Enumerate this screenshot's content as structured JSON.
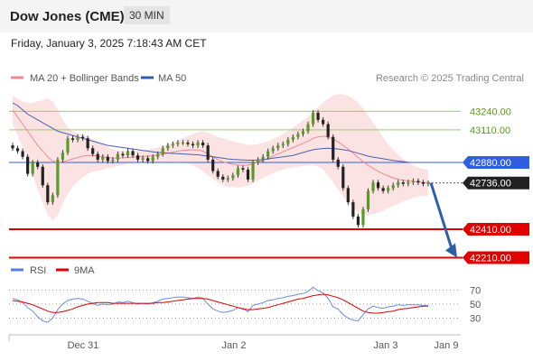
{
  "header": {
    "title": "Dow Jones (CME)",
    "interval": "30 MIN",
    "datetime": "Friday, January 3, 2025 7:18:43 AM CET"
  },
  "legend": {
    "items": [
      {
        "label": "MA 20 + Bollinger Bands",
        "color": "#f08a8a"
      },
      {
        "label": "MA 50",
        "color": "#2e5fa8"
      }
    ],
    "credit": "Research © 2025 Trading Central"
  },
  "lower_legend": {
    "items": [
      {
        "label": "RSI",
        "color": "#5b7fd6"
      },
      {
        "label": "9MA",
        "color": "#e00000"
      }
    ]
  },
  "chart_data": [
    {
      "type": "candlestick",
      "ylim": [
        42150,
        43420
      ],
      "x_ticks": [
        "Dec 31",
        "Jan 2",
        "Jan 3",
        "Jan 9"
      ],
      "levels": [
        {
          "label": "43240.00",
          "value": 43240,
          "kind": "resistance",
          "color": "#9acd60"
        },
        {
          "label": "43110.00",
          "value": 43110,
          "kind": "resistance",
          "color": "#9acd60"
        },
        {
          "label": "42880.00",
          "value": 42880,
          "kind": "pivot",
          "color": "#2f5fe0"
        },
        {
          "label": "42736.00",
          "value": 42736,
          "kind": "last",
          "color": "#222222"
        },
        {
          "label": "42410.00",
          "value": 42410,
          "kind": "support",
          "color": "#e00000"
        },
        {
          "label": "42210.00",
          "value": 42210,
          "kind": "support",
          "color": "#e00000"
        }
      ],
      "close": [
        42980,
        42960,
        42920,
        42800,
        42880,
        42850,
        42720,
        42600,
        42650,
        42900,
        42950,
        43050,
        43040,
        43060,
        43050,
        42980,
        42940,
        42900,
        42920,
        42890,
        42900,
        42940,
        42930,
        42960,
        42930,
        42900,
        42910,
        42890,
        42920,
        42940,
        42980,
        43000,
        43010,
        43020,
        43020,
        43010,
        43000,
        43020,
        43000,
        42900,
        42820,
        42780,
        42760,
        42770,
        42790,
        42840,
        42830,
        42760,
        42880,
        42900,
        42920,
        42960,
        42980,
        43000,
        43010,
        43040,
        43060,
        43080,
        43100,
        43150,
        43230,
        43180,
        43150,
        43060,
        42900,
        42850,
        42700,
        42600,
        42500,
        42440,
        42550,
        42680,
        42740,
        42700,
        42680,
        42700,
        42720,
        42740,
        42730,
        42740,
        42750,
        42740,
        42730,
        42736
      ],
      "forecast": [
        42736,
        42210
      ],
      "ma50": [
        43300,
        43280,
        43250,
        43220,
        43200,
        43180,
        43160,
        43140,
        43120,
        43100,
        43090,
        43080,
        43070,
        43060,
        43050,
        43040,
        43030,
        43020,
        43010,
        43000,
        42995,
        42990,
        42985,
        42980,
        42975,
        42970,
        42965,
        42960,
        42955,
        42950,
        42948,
        42946,
        42944,
        42942,
        42940,
        42938,
        42936,
        42934,
        42930,
        42925,
        42920,
        42915,
        42910,
        42905,
        42902,
        42900,
        42898,
        42896,
        42896,
        42898,
        42900,
        42905,
        42910,
        42915,
        42920,
        42925,
        42930,
        42940,
        42950,
        42960,
        42970,
        42975,
        42978,
        42980,
        42978,
        42975,
        42970,
        42965,
        42955,
        42945,
        42935,
        42925,
        42918,
        42912,
        42906,
        42900,
        42895,
        42890,
        42886,
        42882,
        42880,
        42880,
        42880,
        42880
      ],
      "ma20": [
        43250,
        43200,
        43150,
        43100,
        43050,
        43000,
        42960,
        42920,
        42890,
        42880,
        42885,
        42895,
        42905,
        42915,
        42925,
        42930,
        42930,
        42925,
        42920,
        42915,
        42910,
        42910,
        42912,
        42915,
        42918,
        42920,
        42922,
        42925,
        42928,
        42932,
        42938,
        42945,
        42952,
        42960,
        42965,
        42968,
        42970,
        42968,
        42960,
        42940,
        42920,
        42900,
        42885,
        42875,
        42868,
        42862,
        42860,
        42862,
        42870,
        42882,
        42895,
        42910,
        42925,
        42940,
        42955,
        42970,
        42985,
        43000,
        43015,
        43030,
        43050,
        43060,
        43065,
        43060,
        43045,
        43025,
        43000,
        42975,
        42945,
        42915,
        42885,
        42860,
        42838,
        42818,
        42800,
        42785,
        42772,
        42762,
        42755,
        42750,
        42746,
        42743,
        42740,
        42738
      ],
      "bb_upper": [
        43350,
        43330,
        43310,
        43300,
        43300,
        43310,
        43320,
        43330,
        43310,
        43250,
        43180,
        43130,
        43100,
        43085,
        43075,
        43060,
        43045,
        43030,
        43010,
        42990,
        42975,
        42965,
        42960,
        42958,
        42960,
        42962,
        42965,
        42970,
        42978,
        42985,
        42995,
        43008,
        43020,
        43035,
        43050,
        43065,
        43080,
        43095,
        43100,
        43090,
        43075,
        43060,
        43050,
        43040,
        43030,
        43020,
        43012,
        43005,
        43005,
        43010,
        43018,
        43030,
        43045,
        43060,
        43080,
        43100,
        43125,
        43150,
        43175,
        43200,
        43240,
        43270,
        43300,
        43330,
        43350,
        43360,
        43360,
        43350,
        43330,
        43300,
        43260,
        43210,
        43160,
        43110,
        43060,
        43010,
        42970,
        42935,
        42905,
        42880,
        42860,
        42845,
        42835,
        42828
      ],
      "bb_lower": [
        43150,
        43070,
        42990,
        42900,
        42800,
        42690,
        42600,
        42510,
        42470,
        42510,
        42590,
        42660,
        42710,
        42745,
        42775,
        42800,
        42815,
        42820,
        42830,
        42840,
        42845,
        42855,
        42864,
        42872,
        42876,
        42878,
        42879,
        42880,
        42878,
        42879,
        42881,
        42882,
        42884,
        42885,
        42880,
        42871,
        42860,
        42841,
        42820,
        42790,
        42765,
        42740,
        42720,
        42710,
        42706,
        42704,
        42708,
        42719,
        42735,
        42754,
        42772,
        42790,
        42805,
        42820,
        42830,
        42840,
        42845,
        42850,
        42855,
        42860,
        42860,
        42850,
        42830,
        42790,
        42740,
        42690,
        42640,
        42600,
        42560,
        42530,
        42510,
        42510,
        42516,
        42526,
        42540,
        42560,
        42574,
        42589,
        42605,
        42620,
        42632,
        42641,
        42645,
        42648
      ]
    },
    {
      "type": "line",
      "ylim": [
        10,
        82
      ],
      "y_ticks": [
        70,
        50,
        30
      ],
      "rsi": [
        58,
        56,
        52,
        45,
        40,
        32,
        26,
        24,
        30,
        42,
        50,
        55,
        57,
        58,
        57,
        54,
        51,
        48,
        50,
        49,
        50,
        53,
        52,
        54,
        52,
        50,
        51,
        50,
        52,
        54,
        57,
        58,
        59,
        60,
        60,
        59,
        58,
        60,
        58,
        50,
        43,
        40,
        38,
        39,
        41,
        45,
        44,
        39,
        48,
        50,
        52,
        55,
        56,
        58,
        59,
        61,
        62,
        64,
        65,
        68,
        74,
        69,
        66,
        58,
        46,
        43,
        35,
        30,
        27,
        26,
        35,
        43,
        47,
        45,
        44,
        46,
        47,
        49,
        48,
        49,
        49,
        49,
        48,
        48
      ],
      "rsi_ma": [
        55,
        54,
        53,
        51,
        49,
        46,
        43,
        40,
        38,
        38,
        39,
        41,
        43,
        46,
        48,
        50,
        51,
        52,
        52,
        52,
        51,
        51,
        51,
        51,
        51,
        51,
        51,
        51,
        51,
        52,
        52,
        53,
        54,
        55,
        56,
        57,
        58,
        58,
        58,
        57,
        55,
        53,
        51,
        49,
        47,
        45,
        43,
        42,
        42,
        43,
        44,
        45,
        47,
        49,
        51,
        53,
        55,
        57,
        58,
        60,
        62,
        63,
        64,
        63,
        61,
        59,
        56,
        52,
        48,
        44,
        40,
        38,
        37,
        37,
        38,
        39,
        40,
        42,
        43,
        44,
        45,
        46,
        47,
        47
      ]
    }
  ]
}
